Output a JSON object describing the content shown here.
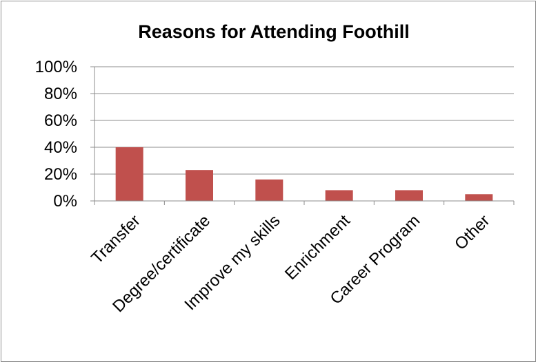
{
  "chart_data": {
    "type": "bar",
    "title": "Reasons for Attending Foothill",
    "categories": [
      "Transfer",
      "Degree/certificate",
      "Improve my skills",
      "Enrichment",
      "Career Program",
      "Other"
    ],
    "values": [
      40,
      23,
      16,
      8,
      8,
      5
    ],
    "value_unit": "%",
    "ylim": [
      0,
      100
    ],
    "y_ticks": [
      "0%",
      "20%",
      "40%",
      "60%",
      "80%",
      "100%"
    ],
    "xlabel": "",
    "ylabel": "",
    "grid": true,
    "legend": "none",
    "bar_color": "#c0504d"
  }
}
